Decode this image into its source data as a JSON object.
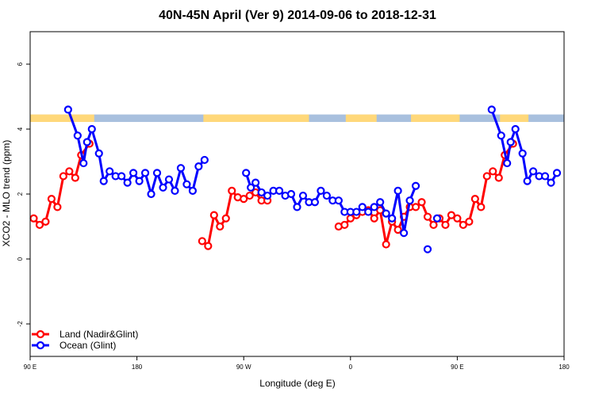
{
  "chart_data": {
    "type": "line",
    "title": "40N-45N April (Ver 9)   2014-09-06 to 2018-12-31",
    "xlabel": "Longitude (deg E)",
    "ylabel": "XCO2 - MLO trend (ppm)",
    "xlim": [
      90,
      540
    ],
    "ylim": [
      -3,
      7
    ],
    "x_ticks": [
      {
        "value": 90,
        "label": "90 E"
      },
      {
        "value": 180,
        "label": "180"
      },
      {
        "value": 270,
        "label": "90 W"
      },
      {
        "value": 360,
        "label": "0"
      },
      {
        "value": 450,
        "label": "90 E"
      },
      {
        "value": 540,
        "label": "180"
      }
    ],
    "y_ticks": [
      {
        "value": -2,
        "label": "-2"
      },
      {
        "value": 0,
        "label": "0"
      },
      {
        "value": 2,
        "label": "2"
      },
      {
        "value": 4,
        "label": "4"
      },
      {
        "value": 6,
        "label": "6"
      }
    ],
    "legend_position": "bottom-left",
    "land_mask_strip": {
      "y_range": [
        4.22,
        4.45
      ],
      "land_color": "#ffd87a",
      "ocean_color": "#a8c0de",
      "land_segments": [
        [
          90,
          144
        ],
        [
          236,
          325
        ],
        [
          356,
          382
        ],
        [
          411,
          452
        ],
        [
          486,
          510
        ]
      ]
    },
    "series": [
      {
        "name": "Land (Nadir&Glint)",
        "color": "#ff0000",
        "segments": [
          [
            [
              93,
              1.25
            ],
            [
              98,
              1.05
            ],
            [
              103,
              1.15
            ],
            [
              108,
              1.85
            ],
            [
              113,
              1.6
            ],
            [
              118,
              2.55
            ],
            [
              123,
              2.7
            ],
            [
              128,
              2.5
            ],
            [
              133,
              3.2
            ],
            [
              140,
              3.55
            ]
          ],
          [
            [
              235,
              0.55
            ],
            [
              240,
              0.4
            ],
            [
              245,
              1.35
            ],
            [
              250,
              1.0
            ],
            [
              255,
              1.25
            ],
            [
              260,
              2.1
            ],
            [
              265,
              1.9
            ],
            [
              270,
              1.85
            ],
            [
              275,
              1.95
            ],
            [
              280,
              2.05
            ],
            [
              285,
              1.8
            ],
            [
              290,
              1.8
            ]
          ],
          [
            [
              350,
              1.0
            ],
            [
              355,
              1.05
            ],
            [
              360,
              1.25
            ],
            [
              365,
              1.35
            ],
            [
              370,
              1.45
            ],
            [
              375,
              1.5
            ],
            [
              380,
              1.25
            ],
            [
              385,
              1.5
            ],
            [
              390,
              0.45
            ],
            [
              395,
              1.15
            ],
            [
              400,
              0.9
            ],
            [
              405,
              1.3
            ],
            [
              410,
              1.6
            ],
            [
              415,
              1.6
            ],
            [
              420,
              1.75
            ],
            [
              425,
              1.3
            ],
            [
              430,
              1.05
            ],
            [
              435,
              1.25
            ],
            [
              440,
              1.05
            ],
            [
              445,
              1.35
            ],
            [
              450,
              1.25
            ],
            [
              455,
              1.05
            ],
            [
              460,
              1.15
            ],
            [
              465,
              1.85
            ],
            [
              470,
              1.6
            ],
            [
              475,
              2.55
            ],
            [
              480,
              2.7
            ],
            [
              485,
              2.5
            ],
            [
              490,
              3.2
            ],
            [
              497,
              3.55
            ]
          ]
        ]
      },
      {
        "name": "Ocean (Glint)",
        "color": "#0000ff",
        "segments": [
          [
            [
              122,
              4.6
            ],
            [
              130,
              3.8
            ],
            [
              135,
              2.95
            ],
            [
              138,
              3.6
            ],
            [
              142,
              4.0
            ],
            [
              148,
              3.25
            ],
            [
              152,
              2.4
            ],
            [
              157,
              2.7
            ],
            [
              162,
              2.55
            ],
            [
              167,
              2.55
            ],
            [
              172,
              2.35
            ],
            [
              177,
              2.65
            ],
            [
              182,
              2.4
            ],
            [
              187,
              2.65
            ],
            [
              192,
              2.0
            ],
            [
              197,
              2.65
            ],
            [
              202,
              2.2
            ],
            [
              207,
              2.45
            ],
            [
              212,
              2.1
            ],
            [
              217,
              2.8
            ],
            [
              222,
              2.3
            ],
            [
              227,
              2.1
            ],
            [
              232,
              2.85
            ],
            [
              237,
              3.05
            ]
          ],
          [
            [
              272,
              2.65
            ],
            [
              276,
              2.2
            ],
            [
              280,
              2.35
            ],
            [
              285,
              2.05
            ],
            [
              290,
              1.95
            ],
            [
              295,
              2.1
            ],
            [
              300,
              2.1
            ],
            [
              305,
              1.95
            ],
            [
              310,
              2.0
            ],
            [
              315,
              1.6
            ],
            [
              320,
              1.95
            ],
            [
              325,
              1.75
            ],
            [
              330,
              1.75
            ],
            [
              335,
              2.1
            ],
            [
              340,
              1.95
            ],
            [
              345,
              1.8
            ],
            [
              350,
              1.8
            ],
            [
              355,
              1.45
            ],
            [
              360,
              1.45
            ],
            [
              365,
              1.45
            ],
            [
              370,
              1.6
            ],
            [
              375,
              1.45
            ],
            [
              380,
              1.6
            ],
            [
              385,
              1.75
            ],
            [
              390,
              1.4
            ],
            [
              395,
              1.25
            ],
            [
              400,
              2.1
            ],
            [
              405,
              0.8
            ],
            [
              410,
              1.8
            ],
            [
              415,
              2.25
            ]
          ],
          [
            [
              425,
              0.3
            ]
          ],
          [
            [
              433,
              1.25
            ]
          ],
          [
            [
              479,
              4.6
            ],
            [
              487,
              3.8
            ],
            [
              492,
              2.95
            ],
            [
              495,
              3.6
            ],
            [
              499,
              4.0
            ],
            [
              505,
              3.25
            ],
            [
              509,
              2.4
            ],
            [
              514,
              2.7
            ],
            [
              519,
              2.55
            ],
            [
              524,
              2.55
            ],
            [
              529,
              2.35
            ],
            [
              534,
              2.65
            ]
          ]
        ]
      }
    ]
  }
}
